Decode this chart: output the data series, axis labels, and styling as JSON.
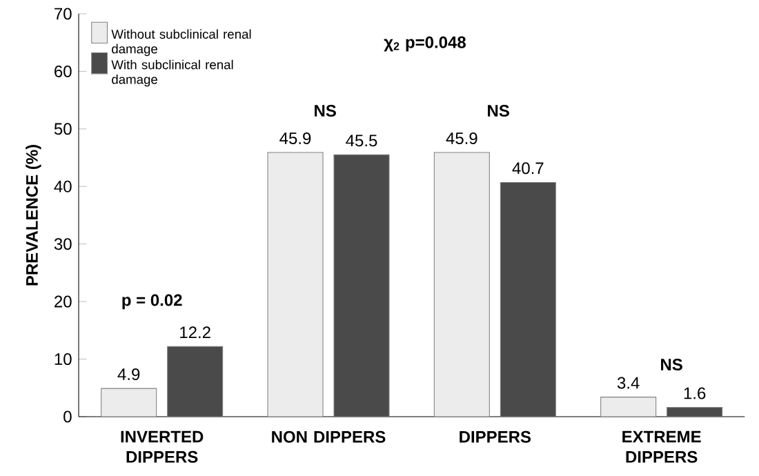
{
  "chart_data": {
    "type": "bar",
    "ylabel": "PREVALENCE (%)",
    "categories": [
      "INVERTED DIPPERS",
      "NON DIPPERS",
      "DIPPERS",
      "EXTREME DIPPERS"
    ],
    "series": [
      {
        "name": "Without subclinical renal damage",
        "color": "#ececec",
        "values": [
          4.9,
          45.9,
          45.9,
          3.4
        ]
      },
      {
        "name": "With subclinical renal damage",
        "color": "#4a4a4a",
        "values": [
          12.2,
          45.5,
          40.7,
          1.6
        ]
      }
    ],
    "ylim": [
      0,
      70
    ],
    "yticks": [
      0,
      10,
      20,
      30,
      40,
      50,
      60,
      70
    ],
    "grid": false,
    "legend": "top left",
    "data_labels": true,
    "annotations": [
      "χ$_{2}$  p=0.048",
      "p = 0.02",
      "NS",
      "NS",
      "NS"
    ]
  }
}
